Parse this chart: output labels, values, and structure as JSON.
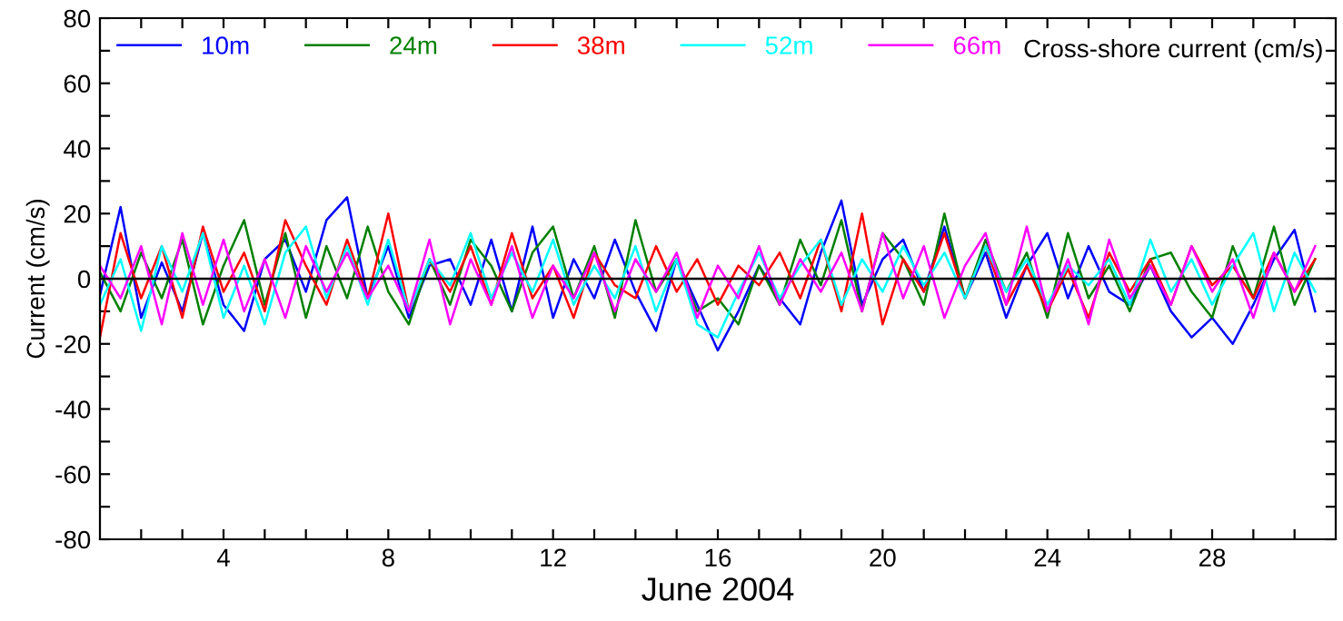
{
  "chart_data": {
    "type": "line",
    "xlabel": "June 2004",
    "ylabel": "Current (cm/s)",
    "annotations": [
      "Cross-shore current (cm/s)"
    ],
    "x": [
      1,
      1.5,
      2,
      2.5,
      3,
      3.5,
      4,
      4.5,
      5,
      5.5,
      6,
      6.5,
      7,
      7.5,
      8,
      8.5,
      9,
      9.5,
      10,
      10.5,
      11,
      11.5,
      12,
      12.5,
      13,
      13.5,
      14,
      14.5,
      15,
      15.5,
      16,
      16.5,
      17,
      17.5,
      18,
      18.5,
      19,
      19.5,
      20,
      20.5,
      21,
      21.5,
      22,
      22.5,
      23,
      23.5,
      24,
      24.5,
      25,
      25.5,
      26,
      26.5,
      27,
      27.5,
      28,
      28.5,
      29,
      29.5,
      30,
      30.5
    ],
    "series": [
      {
        "name": "10m",
        "color": "#0000ff",
        "values": [
          -5,
          22,
          -12,
          5,
          -10,
          14,
          -8,
          -16,
          6,
          12,
          -4,
          18,
          25,
          -6,
          10,
          -12,
          4,
          6,
          -8,
          12,
          -10,
          16,
          -12,
          6,
          -6,
          12,
          -4,
          -16,
          6,
          -8,
          -22,
          -10,
          4,
          -6,
          -14,
          8,
          24,
          -8,
          6,
          12,
          -4,
          16,
          -6,
          8,
          -12,
          4,
          14,
          -6,
          10,
          -4,
          -8,
          4,
          -10,
          -18,
          -12,
          -20,
          -8,
          6,
          15,
          -10
        ]
      },
      {
        "name": "24m",
        "color": "#008000",
        "values": [
          2,
          -10,
          8,
          -6,
          12,
          -14,
          4,
          18,
          -8,
          14,
          -12,
          10,
          -6,
          16,
          -4,
          -14,
          6,
          -8,
          12,
          4,
          -10,
          8,
          16,
          -6,
          10,
          -12,
          18,
          -4,
          6,
          -10,
          -6,
          -14,
          4,
          -8,
          12,
          -2,
          18,
          -10,
          14,
          6,
          -8,
          20,
          -6,
          12,
          -4,
          8,
          -12,
          14,
          -6,
          4,
          -10,
          6,
          8,
          -4,
          -12,
          10,
          -6,
          16,
          -8,
          6
        ]
      },
      {
        "name": "38m",
        "color": "#ff0000",
        "values": [
          -18,
          14,
          -6,
          10,
          -12,
          16,
          -4,
          8,
          -10,
          18,
          4,
          -8,
          12,
          -6,
          20,
          -10,
          6,
          -4,
          10,
          -8,
          14,
          -6,
          4,
          -12,
          8,
          -2,
          -6,
          10,
          -4,
          6,
          -8,
          4,
          -2,
          8,
          -6,
          12,
          -10,
          20,
          -14,
          6,
          -4,
          14,
          -6,
          10,
          -8,
          4,
          -10,
          3,
          -12,
          8,
          -4,
          6,
          -8,
          10,
          -2,
          4,
          -6,
          8,
          -4,
          6
        ]
      },
      {
        "name": "52m",
        "color": "#00ffff",
        "values": [
          -8,
          6,
          -16,
          10,
          -4,
          14,
          -12,
          4,
          -14,
          8,
          16,
          -6,
          10,
          -8,
          12,
          -10,
          6,
          -2,
          14,
          -6,
          8,
          -4,
          12,
          -8,
          4,
          -6,
          10,
          -10,
          6,
          -14,
          -18,
          -4,
          8,
          -6,
          4,
          12,
          -8,
          6,
          -4,
          10,
          -2,
          8,
          -6,
          10,
          -4,
          6,
          -8,
          4,
          -2,
          6,
          -8,
          12,
          -4,
          6,
          -8,
          4,
          14,
          -10,
          8,
          -4
        ]
      },
      {
        "name": "66m",
        "color": "#ff00ff",
        "values": [
          4,
          -6,
          10,
          -14,
          14,
          -8,
          12,
          -10,
          6,
          -12,
          10,
          -4,
          8,
          -6,
          4,
          -10,
          12,
          -14,
          6,
          -8,
          10,
          -12,
          4,
          -6,
          8,
          -10,
          6,
          -4,
          8,
          -12,
          4,
          -6,
          10,
          -8,
          6,
          -4,
          8,
          -10,
          14,
          -6,
          10,
          -12,
          4,
          14,
          -8,
          16,
          -10,
          6,
          -14,
          12,
          -6,
          4,
          -8,
          10,
          -4,
          6,
          -12,
          8,
          -4,
          10
        ]
      }
    ],
    "xlim": [
      1,
      31
    ],
    "xticks": [
      {
        "value": 2,
        "label": null
      },
      {
        "value": 3,
        "label": null
      },
      4,
      {
        "value": 5,
        "label": null
      },
      {
        "value": 6,
        "label": null
      },
      {
        "value": 7,
        "label": null
      },
      8,
      {
        "value": 9,
        "label": null
      },
      {
        "value": 10,
        "label": null
      },
      {
        "value": 11,
        "label": null
      },
      12,
      {
        "value": 13,
        "label": null
      },
      {
        "value": 14,
        "label": null
      },
      {
        "value": 15,
        "label": null
      },
      16,
      {
        "value": 17,
        "label": null
      },
      {
        "value": 18,
        "label": null
      },
      {
        "value": 19,
        "label": null
      },
      20,
      {
        "value": 21,
        "label": null
      },
      {
        "value": 22,
        "label": null
      },
      {
        "value": 23,
        "label": null
      },
      24,
      {
        "value": 25,
        "label": null
      },
      {
        "value": 26,
        "label": null
      },
      {
        "value": 27,
        "label": null
      },
      28,
      {
        "value": 29,
        "label": null
      },
      {
        "value": 30,
        "label": null
      }
    ],
    "ylim": [
      -80,
      80
    ],
    "yticks": [
      -80,
      {
        "value": -70,
        "label": null
      },
      -60,
      {
        "value": -50,
        "label": null
      },
      -40,
      {
        "value": -30,
        "label": null
      },
      -20,
      {
        "value": -10,
        "label": null
      },
      0,
      {
        "value": 10,
        "label": null
      },
      20,
      {
        "value": 30,
        "label": null
      },
      40,
      {
        "value": 50,
        "label": null
      },
      60,
      {
        "value": 70,
        "label": null
      },
      80
    ],
    "ref_lines": [
      {
        "axis": "y",
        "value": 0,
        "color": "#000000"
      }
    ],
    "legend": "top left",
    "grid": false,
    "marker": "none",
    "line_style": "solid"
  }
}
